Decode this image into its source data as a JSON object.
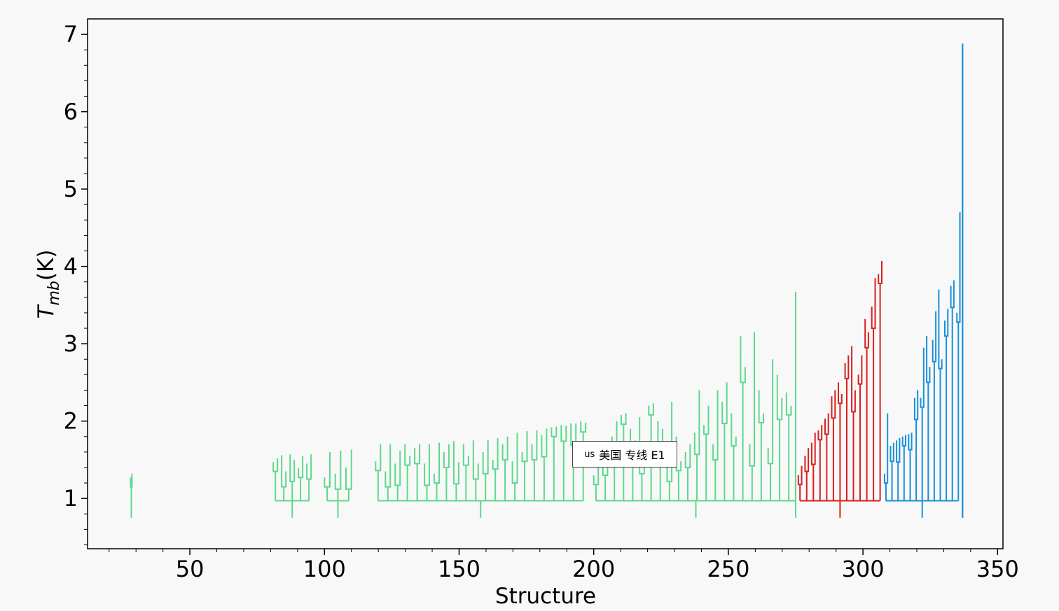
{
  "chart_data": {
    "type": "dendrogram",
    "xlabel": "Structure",
    "ylabel_main": "T",
    "ylabel_sub": "mb",
    "ylabel_unit": "(K)",
    "xlim": [
      12,
      352
    ],
    "ylim": [
      0.35,
      7.2
    ],
    "xticks": [
      50,
      100,
      150,
      200,
      250,
      300,
      350
    ],
    "yticks": [
      1,
      2,
      3,
      4,
      5,
      6,
      7
    ],
    "colors": {
      "green": "#5cd98b",
      "red": "#d91f1f",
      "blue": "#1a8fd9",
      "frame": "#000000",
      "background": "#f8f8f8"
    },
    "series": [
      {
        "color": "green",
        "trunks": [
          {
            "x": [
              28,
              28.5
            ],
            "base": 0.75,
            "tops": [
              1.27,
              1.32
            ]
          },
          {
            "x": [
              81,
              95
            ],
            "base": 0.75,
            "tops": [
              1.47,
              1.52,
              1.56,
              1.35,
              1.57,
              1.5,
              1.39,
              1.55,
              1.45,
              1.57
            ]
          },
          {
            "x": [
              100,
              110
            ],
            "base": 0.75,
            "tops": [
              1.27,
              1.6,
              1.32,
              1.62,
              1.4,
              1.63
            ]
          },
          {
            "x": [
              119,
              197
            ],
            "base": 0.75,
            "tops": [
              1.48,
              1.7,
              1.35,
              1.7,
              1.45,
              1.62,
              1.7,
              1.55,
              1.65,
              1.7,
              1.45,
              1.7,
              1.32,
              1.72,
              1.6,
              1.7,
              1.74,
              1.47,
              1.7,
              1.55,
              1.75,
              1.45,
              1.6,
              1.76,
              1.5,
              1.78,
              1.7,
              1.8,
              1.48,
              1.85,
              1.6,
              1.87,
              1.7,
              1.88,
              1.82,
              1.9,
              1.92,
              1.93,
              1.95,
              1.94,
              1.97,
              1.97,
              2.0,
              1.98
            ]
          },
          {
            "x": [
              200,
              275
            ],
            "base": 0.75,
            "tops": [
              1.3,
              1.4,
              1.5,
              1.6,
              1.8,
              2.0,
              2.08,
              2.1,
              1.9,
              1.75,
              2.05,
              1.6,
              2.2,
              2.23,
              2.0,
              1.9,
              1.5,
              2.25,
              1.8,
              1.48,
              1.6,
              1.7,
              1.85,
              2.4,
              1.95,
              2.2,
              1.7,
              2.4,
              2.25,
              2.5,
              2.1,
              1.8,
              3.1,
              2.7,
              1.7,
              3.15,
              2.4,
              2.1,
              1.65,
              2.8,
              2.6,
              2.3,
              2.37,
              2.2,
              3.67
            ]
          }
        ]
      },
      {
        "color": "red",
        "trunks": [
          {
            "x": [
              276,
              307
            ],
            "base": 0.75,
            "tops": [
              1.3,
              1.42,
              1.55,
              1.65,
              1.72,
              1.85,
              1.88,
              1.95,
              2.03,
              2.1,
              2.32,
              2.4,
              2.5,
              2.35,
              2.75,
              2.85,
              2.97,
              2.4,
              2.6,
              2.85,
              3.32,
              3.15,
              3.48,
              3.85,
              3.9,
              4.07
            ]
          }
        ]
      },
      {
        "color": "blue",
        "trunks": [
          {
            "x": [
              308,
              336
            ],
            "base": 0.75,
            "tops": [
              1.32,
              2.1,
              1.68,
              1.72,
              1.75,
              1.78,
              1.8,
              1.82,
              1.83,
              1.85,
              2.3,
              2.4,
              2.3,
              2.95,
              3.1,
              2.7,
              3.05,
              3.42,
              3.7,
              2.8,
              3.3,
              3.45,
              3.75,
              3.82,
              3.4,
              4.7
            ]
          },
          {
            "x": [
              337,
              337
            ],
            "base": 0.75,
            "tops": [
              6.88
            ]
          }
        ]
      }
    ]
  },
  "badge": {
    "small": "us",
    "text": "美国 专线 E1"
  }
}
